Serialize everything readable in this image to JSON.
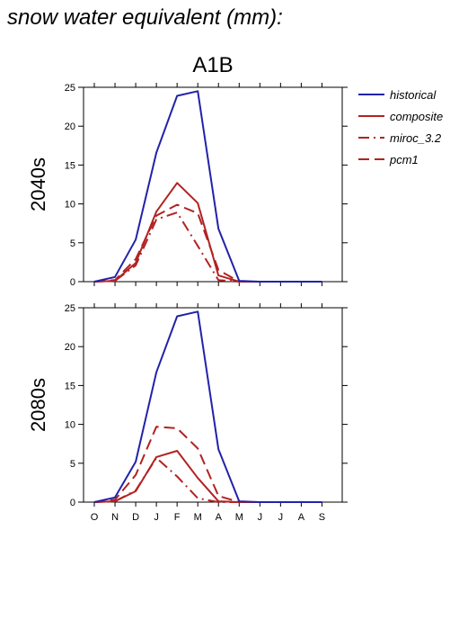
{
  "title": "snow water equivalent (mm):",
  "chart_data": {
    "type": "line",
    "scenario": "A1B",
    "categories": [
      "O",
      "N",
      "D",
      "J",
      "F",
      "M",
      "A",
      "M",
      "J",
      "J",
      "A",
      "S"
    ],
    "ylim": [
      0,
      25
    ],
    "yticks": [
      0,
      5,
      10,
      15,
      20,
      25
    ],
    "legend": {
      "position": "top-right",
      "entries": [
        {
          "name": "historical",
          "color": "#2222aa",
          "dash": "solid"
        },
        {
          "name": "composite",
          "color": "#b22222",
          "dash": "solid"
        },
        {
          "name": "miroc_3.2",
          "color": "#b22222",
          "dash": "dashdot"
        },
        {
          "name": "pcm1",
          "color": "#b22222",
          "dash": "dash"
        }
      ]
    },
    "panels": [
      {
        "label": "2040s",
        "series": [
          {
            "name": "historical",
            "values": [
              0,
              0.6,
              5.4,
              16.6,
              23.9,
              24.5,
              6.8,
              0.1,
              0,
              0,
              0,
              0
            ]
          },
          {
            "name": "composite",
            "values": [
              0,
              0.1,
              2.4,
              9.0,
              12.7,
              10.1,
              0.8,
              0,
              0,
              0,
              0,
              0
            ]
          },
          {
            "name": "miroc_3.2",
            "values": [
              0,
              0.1,
              2.1,
              8.0,
              8.9,
              4.6,
              0.2,
              0,
              0,
              0,
              0,
              0
            ]
          },
          {
            "name": "pcm1",
            "values": [
              0,
              0.2,
              2.9,
              8.5,
              9.9,
              8.8,
              1.5,
              0,
              0,
              0,
              0,
              0
            ]
          }
        ]
      },
      {
        "label": "2080s",
        "series": [
          {
            "name": "historical",
            "values": [
              0,
              0.6,
              5.2,
              16.7,
              23.9,
              24.5,
              6.8,
              0.1,
              0,
              0,
              0,
              0
            ]
          },
          {
            "name": "composite",
            "values": [
              0,
              0.1,
              1.4,
              5.8,
              6.6,
              3.1,
              0.1,
              0,
              0,
              0,
              0,
              0
            ]
          },
          {
            "name": "miroc_3.2",
            "values": [
              0,
              0.1,
              1.5,
              5.7,
              3.3,
              0.5,
              0,
              0,
              0,
              0,
              0,
              0
            ]
          },
          {
            "name": "pcm1",
            "values": [
              0,
              0.3,
              3.5,
              9.7,
              9.5,
              6.9,
              0.8,
              0,
              0,
              0,
              0,
              0
            ]
          }
        ]
      }
    ]
  }
}
